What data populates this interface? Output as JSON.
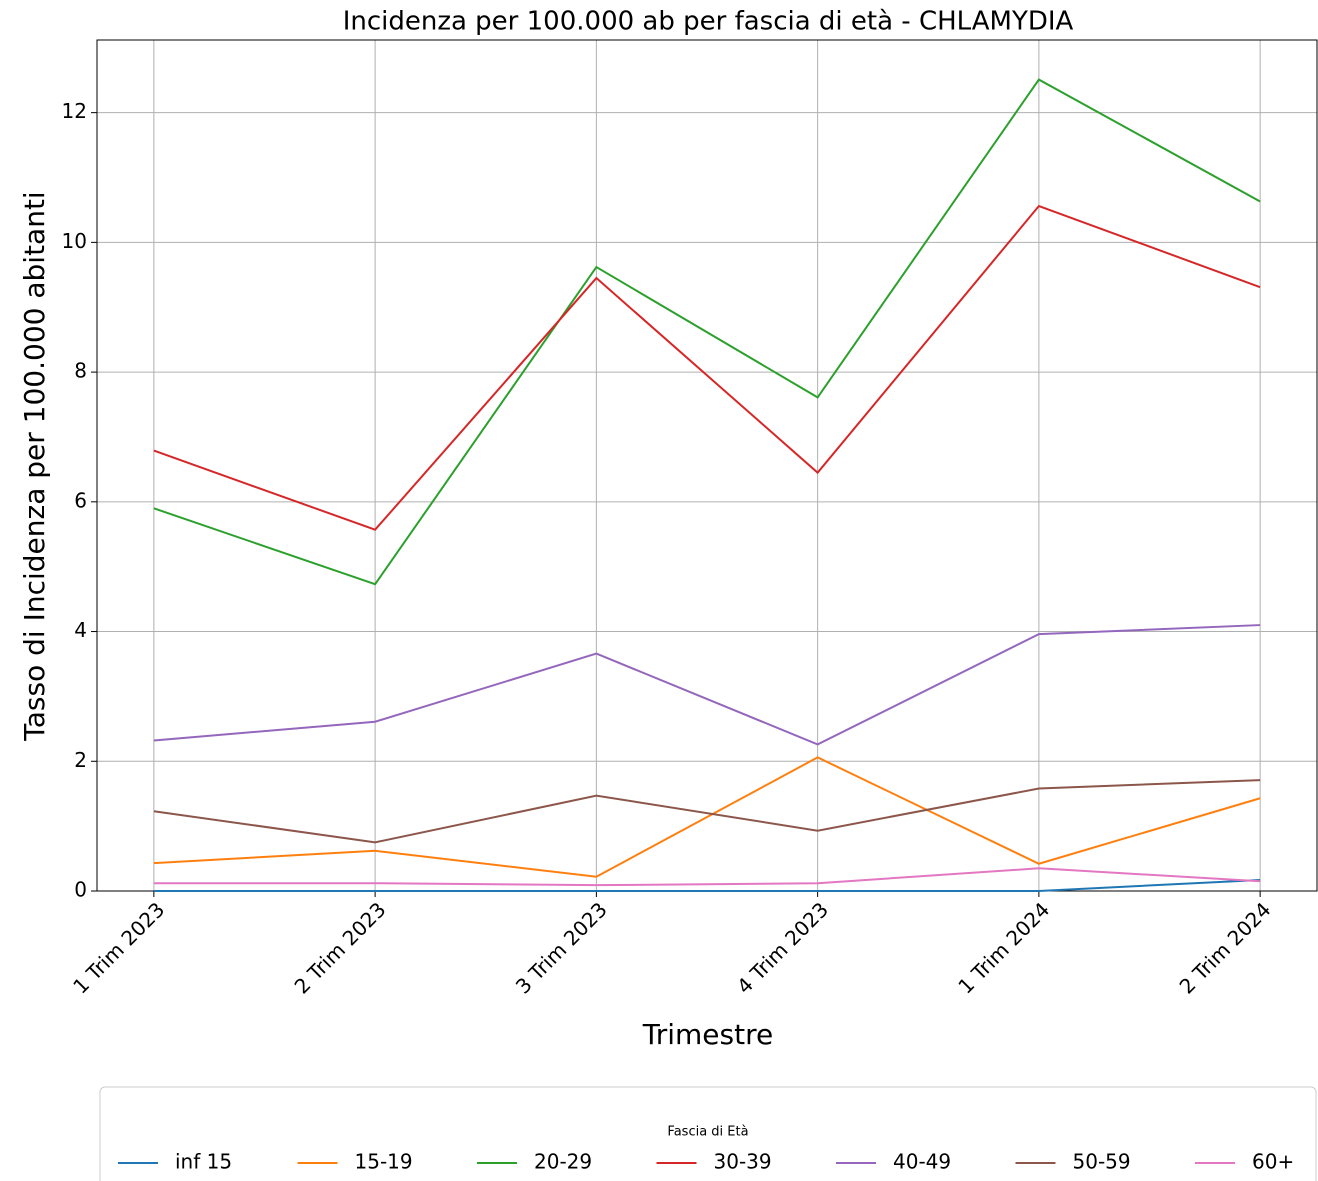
{
  "chart_data": {
    "type": "line",
    "title": "Incidenza per 100.000 ab per fascia di età - CHLAMYDIA",
    "x_label": "Trimestre",
    "y_label": "Tasso di Incidenza per 100.000 abitanti",
    "categories": [
      "1 Trim 2023",
      "2 Trim 2023",
      "3 Trim 2023",
      "4 Trim 2023",
      "1 Trim 2024",
      "2 Trim 2024"
    ],
    "series": [
      {
        "name": "inf 15",
        "color": "#1f77b4",
        "values": [
          0,
          0,
          0,
          0,
          0,
          0.17
        ]
      },
      {
        "name": "15-19",
        "color": "#ff7f0e",
        "values": [
          0.43,
          0.62,
          0.22,
          2.06,
          0.42,
          1.43
        ]
      },
      {
        "name": "20-29",
        "color": "#2ca02c",
        "values": [
          5.9,
          4.73,
          9.62,
          7.61,
          12.51,
          10.63
        ]
      },
      {
        "name": "30-39",
        "color": "#d62728",
        "values": [
          6.79,
          5.57,
          9.45,
          6.45,
          10.56,
          9.31
        ]
      },
      {
        "name": "40-49",
        "color": "#9467bd",
        "values": [
          2.32,
          2.61,
          3.66,
          2.26,
          3.96,
          4.1
        ]
      },
      {
        "name": "50-59",
        "color": "#8c564b",
        "values": [
          1.23,
          0.75,
          1.47,
          0.93,
          1.58,
          1.71
        ]
      },
      {
        "name": "60+",
        "color": "#e377c2",
        "values": [
          0.12,
          0.12,
          0.09,
          0.12,
          0.35,
          0.15
        ]
      }
    ],
    "ylim": [
      0,
      13.12
    ],
    "yticks": [
      0,
      2,
      4,
      6,
      8,
      10,
      12
    ],
    "grid": true,
    "legend_title": "Fascia di Età",
    "legend": "lower center"
  }
}
